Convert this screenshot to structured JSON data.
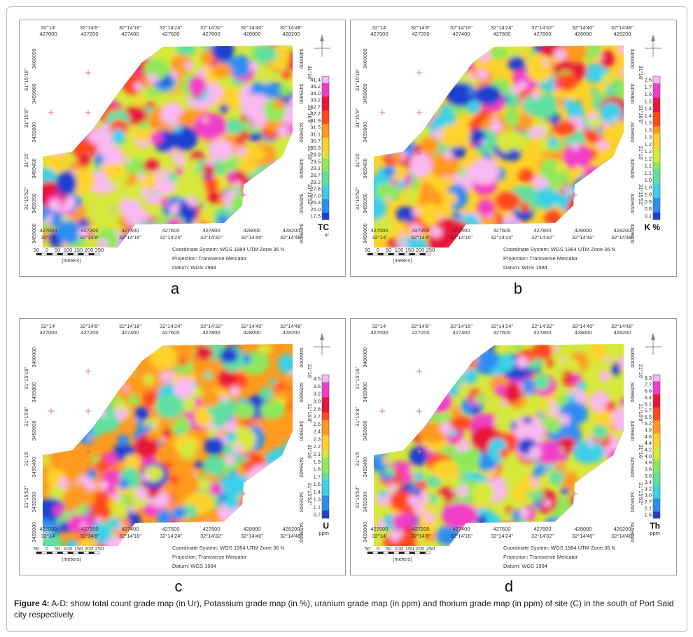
{
  "figure": {
    "caption_label": "Figure 4:",
    "caption_text": " A-D: show total count grade map (in Ur), Potassium grade map (in %), uranium grade map (in ppm) and thorium grade map (in ppm) of site (C) in the south of Port Said city respectively."
  },
  "common": {
    "lon_top": [
      "32°14'",
      "32°14'8\"",
      "32°14'16\"",
      "32°14'24\"",
      "32°14'32\"",
      "32°14'40\"",
      "32°14'48\""
    ],
    "east_top": [
      "427000",
      "427200",
      "427400",
      "427600",
      "427800",
      "428000",
      "428200"
    ],
    "east_bottom": [
      "427000",
      "427200",
      "427400",
      "427600",
      "427800",
      "428000",
      "428200"
    ],
    "lon_bottom": [
      "32°14'",
      "32°14'8\"",
      "32°14'16\"",
      "32°14'24\"",
      "32°14'32\"",
      "32°14'40\"",
      "32°14'48\""
    ],
    "lat_left": [
      "31°15'16\"",
      "31°15'8\"",
      "31°15'",
      "31°15'52\""
    ],
    "north_left": [
      "3460000",
      "3459800",
      "3459600",
      "3459400",
      "3459200",
      "3459000"
    ],
    "lat_right": [
      "31°16'",
      "31°16'8\"",
      "31°16'",
      "31°15'52\""
    ],
    "north_right": [
      "3460000",
      "3459800",
      "3459600",
      "3459400",
      "3459200",
      "3459000"
    ],
    "scale_labels": [
      "50",
      "0",
      "50",
      "100",
      "150",
      "200",
      "250"
    ],
    "scale_unit": "(meters)",
    "coord_system": "Coordinate System: WGS 1984 UTM Zone 36 N",
    "projection": "Projection: Transverse Mercator",
    "datum": "Datum: WGS 1984"
  },
  "panels": [
    {
      "id": "a",
      "label": "a",
      "unit_main": "TC",
      "unit_sub": "ur",
      "legend_values": [
        "41.4",
        "35.2",
        "34.0",
        "33.2",
        "32.7",
        "32.2",
        "31.9",
        "31.5",
        "31.1",
        "30.7",
        "30.3",
        "29.9",
        "29.5",
        "29.1",
        "28.7",
        "28.2",
        "27.6",
        "27.0",
        "26.3",
        "25.0",
        "17.5"
      ]
    },
    {
      "id": "b",
      "label": "b",
      "unit_main": "K %",
      "unit_sub": "",
      "legend_values": [
        "2.5",
        "1.7",
        "1.6",
        "1.5",
        "1.4",
        "1.4",
        "1.3",
        "1.3",
        "1.3",
        "1.2",
        "1.2",
        "1.2",
        "1.1",
        "1.1",
        "1.0",
        "1.0",
        "1.0",
        "0.9",
        "0.8",
        "0.1"
      ]
    },
    {
      "id": "c",
      "label": "c",
      "unit_main": "U",
      "unit_sub": "ppm",
      "legend_values": [
        "4.5",
        "3.6",
        "3.2",
        "3.0",
        "2.8",
        "2.7",
        "2.6",
        "2.4",
        "2.3",
        "2.2",
        "2.1",
        "1.9",
        "1.8",
        "1.7",
        "1.6",
        "1.4",
        "1.3",
        "1.1",
        "0.7"
      ]
    },
    {
      "id": "d",
      "label": "d",
      "unit_main": "Th",
      "unit_sub": "ppm",
      "legend_values": [
        "8.3",
        "7.7",
        "6.6",
        "6.4",
        "6.1",
        "5.7",
        "5.5",
        "5.2",
        "4.9",
        "4.6",
        "4.4",
        "4.2",
        "4.0",
        "3.9",
        "3.8",
        "3.6",
        "3.4",
        "3.2",
        "3.0",
        "2.7",
        "2.1",
        "1.5"
      ]
    }
  ],
  "colors": {
    "ramp": [
      "#1d3fd0",
      "#2f8df0",
      "#3ed0e8",
      "#5fe0a0",
      "#8ee85a",
      "#d6e83a",
      "#ffd22a",
      "#ff9a1e",
      "#ff4a1a",
      "#e8153a",
      "#f23cc8",
      "#f9b8f0"
    ],
    "cross": "#e07090",
    "frame": "#9a9a9a"
  }
}
